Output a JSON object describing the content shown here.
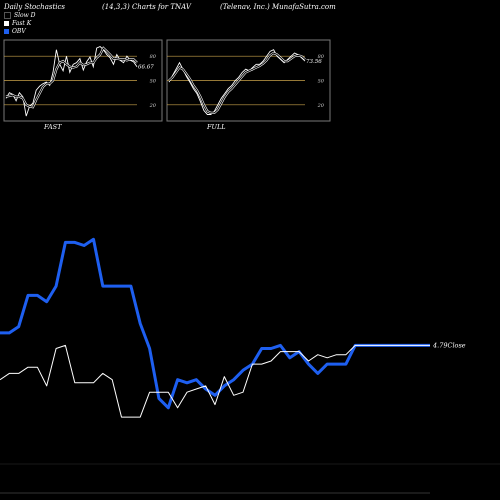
{
  "header": {
    "left": "Daily Stochastics",
    "mid": "(14,3,3) Charts for TNAV",
    "right": "(Telenav, Inc.) MunafaSutra.com"
  },
  "legend": [
    {
      "label": "Slow D",
      "color": "#000000"
    },
    {
      "label": "Fast K",
      "color": "#ffffff"
    },
    {
      "label": "OBV",
      "color": "#1e5ff0"
    }
  ],
  "colors": {
    "background": "#000000",
    "obv": "#1e5ff0",
    "price": "#ffffff",
    "level_line": "#c8a24a",
    "panel_border": "#777777"
  },
  "chart_data": [
    {
      "type": "line",
      "title": "FAST",
      "ylim": [
        0,
        100
      ],
      "yticks": [
        "80",
        "50",
        "20"
      ],
      "last_value_label": "66.67",
      "grid": false,
      "series": [
        {
          "name": "Fast K",
          "values": [
            28,
            35,
            33,
            25,
            35,
            30,
            6,
            18,
            22,
            38,
            43,
            46,
            48,
            44,
            60,
            88,
            70,
            62,
            80,
            60,
            70,
            72,
            77,
            63,
            73,
            79,
            67,
            90,
            92,
            88,
            82,
            78,
            70,
            82,
            75,
            72,
            80,
            75,
            73,
            67
          ]
        },
        {
          "name": "Slow D",
          "values": [
            30,
            31,
            32,
            30,
            30,
            28,
            20,
            18,
            17,
            26,
            34,
            42,
            46,
            46,
            50,
            64,
            72,
            74,
            70,
            67,
            66,
            67,
            72,
            69,
            70,
            72,
            72,
            78,
            82,
            90,
            86,
            82,
            77,
            77,
            76,
            76,
            75,
            76,
            76,
            72
          ]
        }
      ]
    },
    {
      "type": "line",
      "title": "FULL",
      "ylim": [
        0,
        100
      ],
      "yticks": [
        "80",
        "50",
        "20"
      ],
      "last_value_label": "73.56",
      "grid": false,
      "series": [
        {
          "name": "Fast K",
          "values": [
            48,
            56,
            64,
            72,
            64,
            55,
            48,
            40,
            34,
            24,
            13,
            8,
            8,
            12,
            20,
            28,
            34,
            40,
            44,
            50,
            54,
            60,
            64,
            62,
            66,
            70,
            70,
            74,
            80,
            86,
            88,
            80,
            76,
            72,
            76,
            80,
            84,
            82,
            78,
            74
          ]
        },
        {
          "name": "Slow D",
          "values": [
            50,
            54,
            60,
            66,
            64,
            58,
            52,
            44,
            38,
            30,
            20,
            12,
            10,
            10,
            14,
            22,
            30,
            36,
            40,
            45,
            50,
            55,
            60,
            62,
            64,
            66,
            68,
            71,
            75,
            81,
            84,
            82,
            78,
            74,
            74,
            77,
            80,
            81,
            80,
            76
          ]
        }
      ]
    },
    {
      "type": "line",
      "title": "",
      "series": [
        {
          "name": "OBV",
          "values": [
            51,
            51,
            53,
            63,
            63,
            61,
            66,
            80,
            80,
            79,
            81,
            66,
            66,
            66,
            66,
            54,
            46,
            30,
            27,
            36,
            35,
            36,
            33,
            31,
            34,
            36,
            39,
            41,
            46,
            46,
            47,
            43,
            45,
            41,
            38,
            41,
            41,
            41,
            47,
            47,
            47,
            47,
            47,
            47,
            47,
            47,
            47
          ]
        },
        {
          "name": "Close",
          "values": [
            36,
            38,
            38,
            40,
            40,
            34,
            46,
            47,
            35,
            35,
            35,
            38,
            36,
            24,
            24,
            24,
            32,
            32,
            32,
            27,
            32,
            33,
            34,
            28,
            37,
            31,
            32,
            41,
            41,
            42,
            45,
            45,
            45,
            42,
            44,
            43,
            44,
            44,
            47,
            47,
            47,
            47,
            47,
            47,
            47,
            47,
            47
          ]
        }
      ],
      "last_value_label": "4.79Close"
    }
  ]
}
